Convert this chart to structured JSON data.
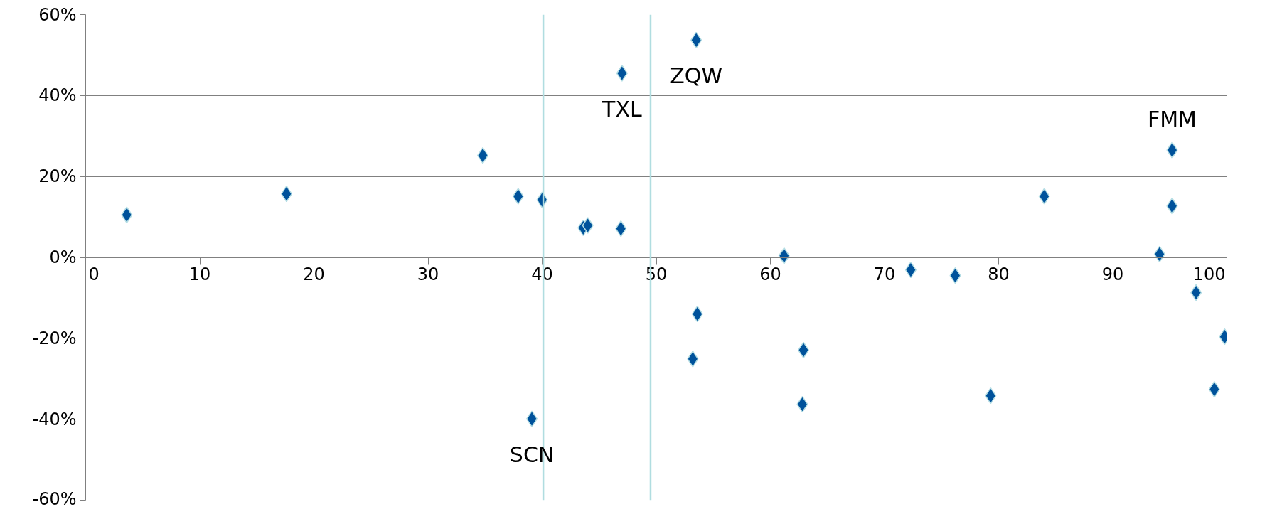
{
  "chart_data": {
    "type": "scatter",
    "marker": "diamond",
    "grid": "y",
    "xlim": [
      0,
      100
    ],
    "xticks": [
      0,
      10,
      20,
      30,
      40,
      50,
      60,
      70,
      80,
      90,
      100
    ],
    "ylim": [
      -60,
      60
    ],
    "yticks": [
      {
        "value": -60,
        "label": "-60%"
      },
      {
        "value": -40,
        "label": "-40%"
      },
      {
        "value": -20,
        "label": "-20%"
      },
      {
        "value": 0,
        "label": "0%"
      },
      {
        "value": 20,
        "label": "20%"
      },
      {
        "value": 40,
        "label": "40%"
      },
      {
        "value": 60,
        "label": "60%"
      }
    ],
    "series": [
      {
        "color": "#00529b",
        "x": [
          3.6,
          17.6,
          34.8,
          37.9,
          40.0,
          43.6,
          44.0,
          46.9,
          47.0,
          53.5,
          84.0,
          95.2,
          95.2,
          61.2,
          72.3,
          76.2,
          94.1,
          97.3,
          53.6,
          53.2,
          62.9,
          62.8,
          79.3,
          98.9,
          99.8,
          39.1
        ],
        "values": [
          10.5,
          15.7,
          25.2,
          15.1,
          14.2,
          7.3,
          7.9,
          7.1,
          45.5,
          53.7,
          15.1,
          26.5,
          12.7,
          0.4,
          -3.1,
          -4.5,
          0.8,
          -8.7,
          -14.0,
          -25.1,
          -22.9,
          -36.3,
          -34.2,
          -32.6,
          -19.6,
          -39.9
        ]
      }
    ],
    "ref_lines": [
      {
        "axis": "x",
        "value": 40.1,
        "color": "#b0dde0"
      },
      {
        "axis": "x",
        "value": 49.5,
        "color": "#b0dde0"
      }
    ],
    "annotations": [
      {
        "text": "TXL",
        "x": 47.0,
        "y": 45.5
      },
      {
        "text": "ZQW",
        "x": 53.5,
        "y": 53.7
      },
      {
        "text": "FMM",
        "x": 95.2,
        "y": 26.5
      },
      {
        "text": "SCN",
        "x": 39.1,
        "y": -39.9
      }
    ]
  }
}
